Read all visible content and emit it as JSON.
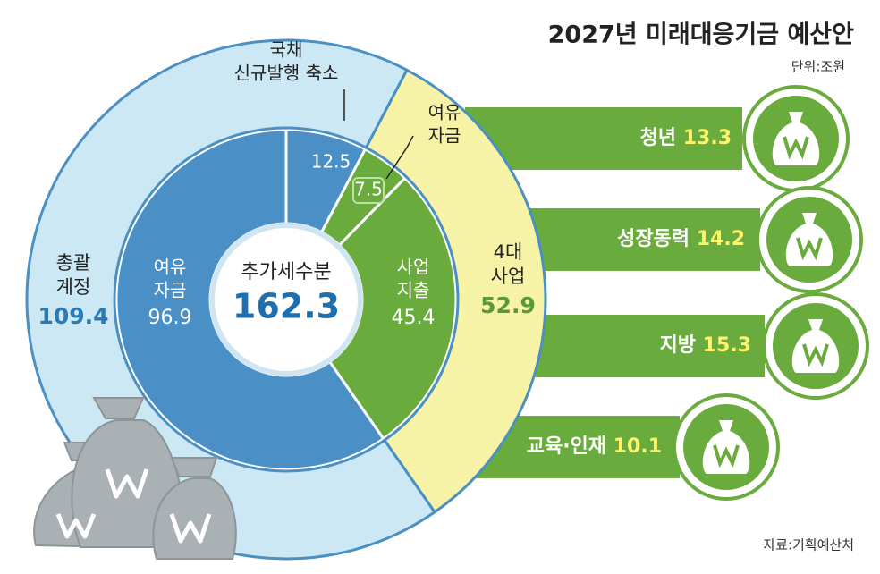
{
  "chart_data": {
    "type": "nested-donut",
    "title": "2027년 미래대응기금 예산안",
    "unit": "단위:조원",
    "source": "자료:기획예산처",
    "center": {
      "label": "추가세수분",
      "value": 162.3
    },
    "inner": [
      {
        "name": [
          "국채",
          "신규발행 축소"
        ],
        "value": 12.5,
        "color": "#4a8fc6"
      },
      {
        "name": [
          "여유",
          "자금"
        ],
        "value": 7.5,
        "color": "#6aab3e"
      },
      {
        "name": [
          "사업",
          "지출"
        ],
        "value": 45.4,
        "color": "#6aab3e"
      },
      {
        "name": [
          "여유",
          "자금"
        ],
        "value": 96.9,
        "color": "#4a8fc6"
      }
    ],
    "outer": [
      {
        "name": [
          "4대",
          "사업"
        ],
        "value": 52.9,
        "color": "#f7f3a6"
      },
      {
        "name": [
          "총괄",
          "계정"
        ],
        "value": 109.4,
        "color": "#cce8f4"
      }
    ],
    "programs": [
      {
        "name": "청년",
        "value": 13.3
      },
      {
        "name": "성장동력",
        "value": 14.2
      },
      {
        "name": "지방",
        "value": 15.3
      },
      {
        "name": "교육·인재",
        "value": 10.1
      }
    ]
  }
}
